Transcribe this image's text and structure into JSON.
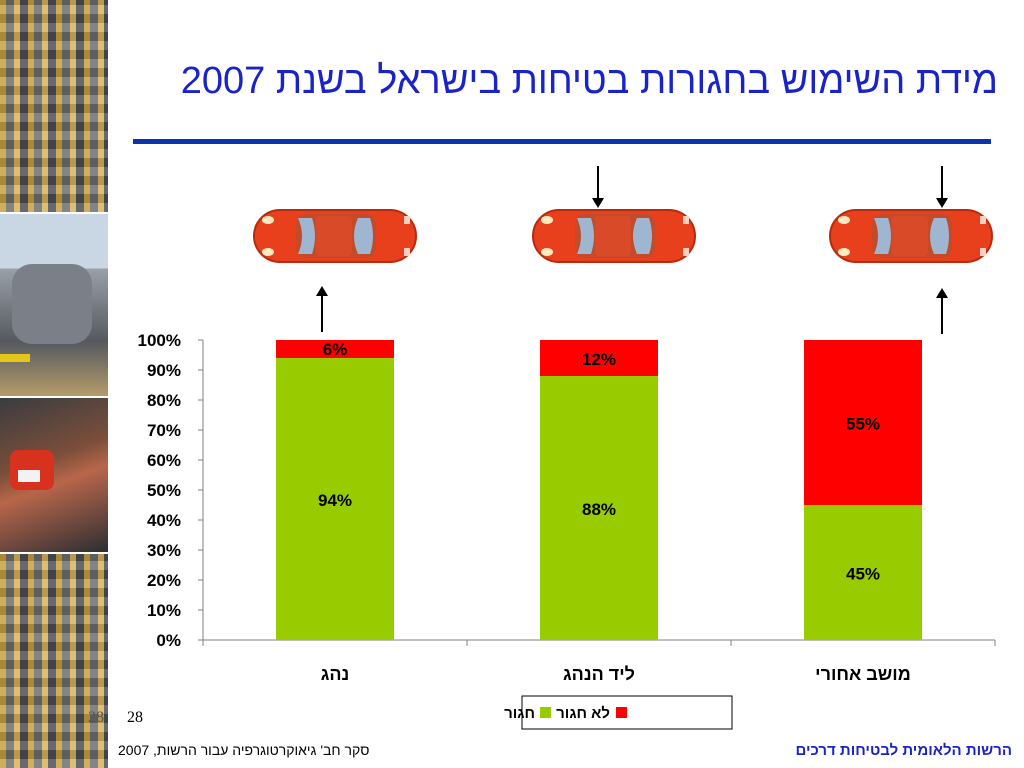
{
  "slide": {
    "title": "מידת השימוש בחגורות בטיחות בישראל בשנת 2007",
    "page_number": "28",
    "page_number_shadow": "28",
    "footer_left": "סקר חב' גיאוקרטוגרפיה עבור הרשות, 2007",
    "footer_right": "הרשות הלאומית לבטיחות דרכים"
  },
  "chart_data": {
    "type": "bar",
    "stacked": true,
    "categories": [
      "נהג",
      "ליד הנהג",
      "מושב אחורי"
    ],
    "series": [
      {
        "name": "חגור",
        "color": "#99cc00",
        "values": [
          94,
          88,
          45
        ],
        "labels": [
          "94%",
          "88%",
          "45%"
        ]
      },
      {
        "name": "לא חגור",
        "color": "#ff0000",
        "values": [
          6,
          12,
          55
        ],
        "labels": [
          "6%",
          "12%",
          "55%"
        ]
      }
    ],
    "ylim": [
      0,
      100
    ],
    "yticks": [
      "0%",
      "10%",
      "20%",
      "30%",
      "40%",
      "50%",
      "60%",
      "70%",
      "80%",
      "90%",
      "100%"
    ],
    "legend_position": "bottom-center",
    "grid": false
  },
  "illustration": {
    "car_color": "#e8401c",
    "arrow_targets": [
      "driver seat",
      "front passenger seat",
      "rear seat"
    ]
  }
}
